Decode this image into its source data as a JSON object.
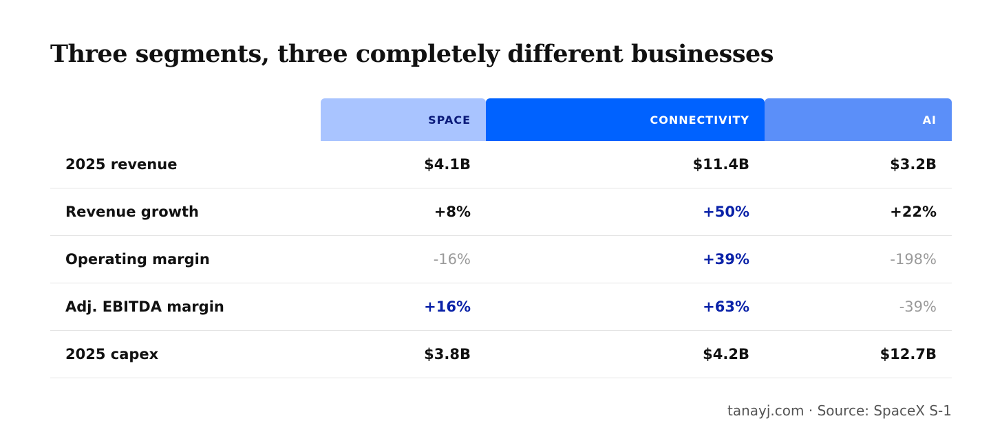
{
  "header": {
    "title": "Three segments, three completely different businesses"
  },
  "table": {
    "columns": [
      "SPACE",
      "CONNECTIVITY",
      "AI"
    ],
    "rows": [
      [
        "2025 revenue",
        "$4.1B",
        "$11.4B",
        "$3.2B"
      ],
      [
        "Revenue growth",
        "+8%",
        "+50%",
        "+22%"
      ],
      [
        "Operating margin",
        "-16%",
        "+39%",
        "-198%"
      ],
      [
        "Adj. EBITDA margin",
        "+16%",
        "+63%",
        "-39%"
      ],
      [
        "2025 capex",
        "$3.8B",
        "$4.2B",
        "$12.7B"
      ]
    ]
  },
  "footer": {
    "source": "tanayj.com · Source: SpaceX S-1"
  }
}
